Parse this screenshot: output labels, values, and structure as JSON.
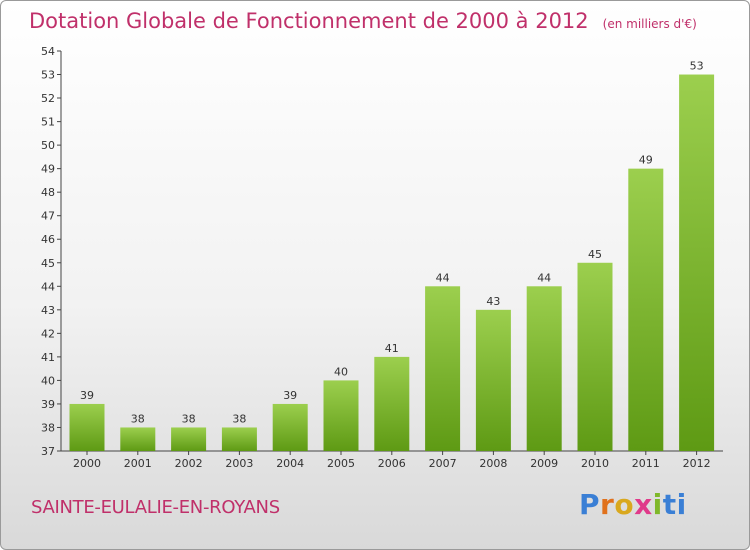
{
  "title": "Dotation Globale de Fonctionnement de 2000 à 2012",
  "unit_note": "(en milliers d'€)",
  "commune": "SAINTE-EULALIE-EN-ROYANS",
  "logo_text": "Proxiti",
  "colors": {
    "title": "#c0306a",
    "bar_top": "#9ccf4e",
    "bar_bottom": "#5e9a14",
    "axis": "#444444"
  },
  "chart_data": {
    "type": "bar",
    "title": "Dotation Globale de Fonctionnement de 2000 à 2012",
    "xlabel": "",
    "ylabel": "",
    "categories": [
      "2000",
      "2001",
      "2002",
      "2003",
      "2004",
      "2005",
      "2006",
      "2007",
      "2008",
      "2009",
      "2010",
      "2011",
      "2012"
    ],
    "values": [
      39,
      38,
      38,
      38,
      39,
      40,
      41,
      44,
      43,
      44,
      45,
      49,
      53
    ],
    "ylim": [
      37,
      54
    ],
    "yticks": [
      37,
      38,
      39,
      40,
      41,
      42,
      43,
      44,
      45,
      46,
      47,
      48,
      49,
      50,
      51,
      52,
      53,
      54
    ],
    "grid": false,
    "legend": "none"
  }
}
